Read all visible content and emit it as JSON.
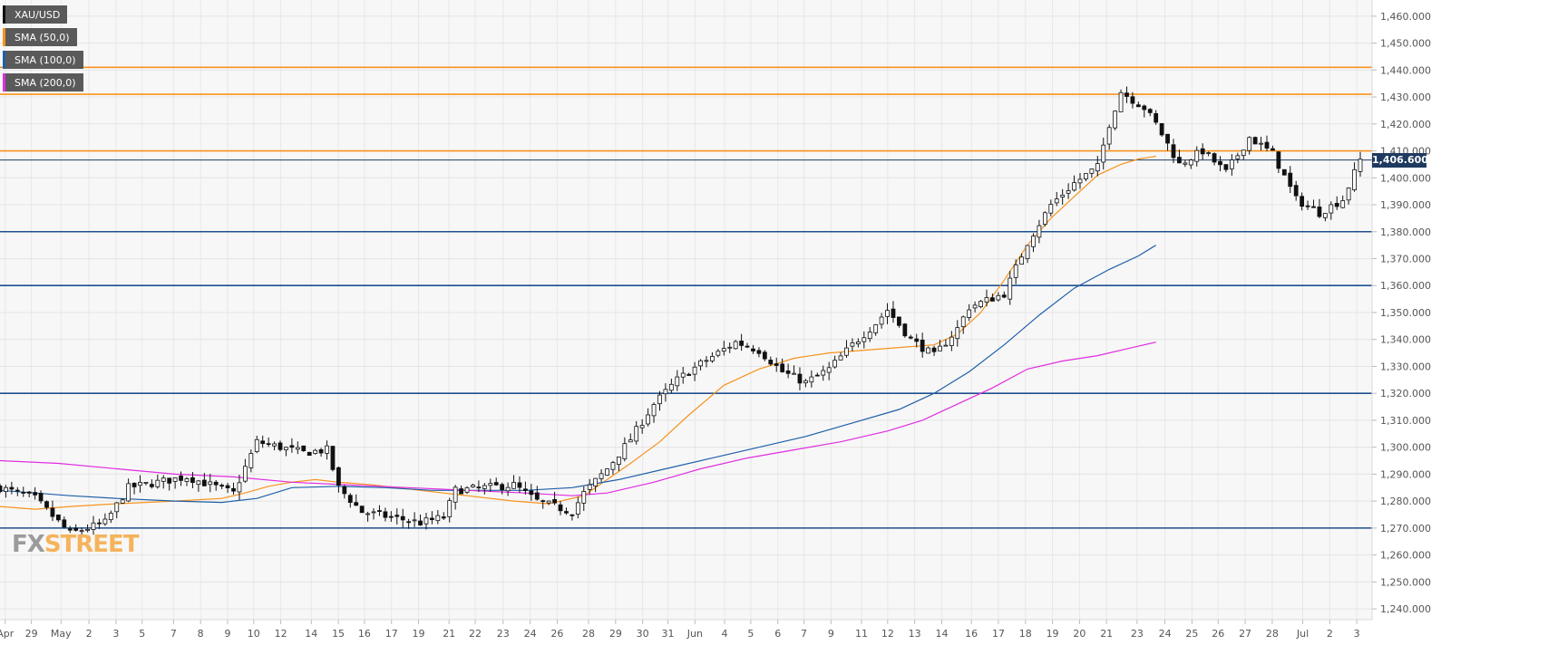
{
  "chart_data": {
    "type": "candlestick",
    "symbol": "XAU/USD",
    "ylim": [
      1236,
      1466
    ],
    "y_ticks": [
      1240,
      1250,
      1260,
      1270,
      1280,
      1290,
      1300,
      1310,
      1320,
      1330,
      1340,
      1350,
      1360,
      1370,
      1380,
      1390,
      1400,
      1410,
      1420,
      1430,
      1440,
      1450,
      1460
    ],
    "y_tick_labels": [
      "1,240.000",
      "1,250.000",
      "1,260.000",
      "1,270.000",
      "1,280.000",
      "1,290.000",
      "1,300.000",
      "1,310.000",
      "1,320.000",
      "1,330.000",
      "1,340.000",
      "1,350.000",
      "1,360.000",
      "1,370.000",
      "1,380.000",
      "1,390.000",
      "1,400.000",
      "1,410.000",
      "1,420.000",
      "1,430.000",
      "1,440.000",
      "1,450.000",
      "1,460.000"
    ],
    "x_labels": [
      "Apr",
      "29",
      "May",
      "2",
      "3",
      "5",
      "7",
      "8",
      "9",
      "10",
      "12",
      "14",
      "15",
      "16",
      "17",
      "19",
      "21",
      "22",
      "23",
      "24",
      "26",
      "28",
      "29",
      "30",
      "31",
      "Jun",
      "4",
      "5",
      "6",
      "7",
      "9",
      "11",
      "12",
      "13",
      "14",
      "16",
      "17",
      "18",
      "19",
      "20",
      "21",
      "23",
      "24",
      "25",
      "26",
      "27",
      "28",
      "Jul",
      "2",
      "3"
    ],
    "current_price": 1406.6,
    "current_price_label": "1,406.600",
    "grid": true,
    "legend_position": "top-left",
    "levels": [
      {
        "value": 1441,
        "color": "#f7931e"
      },
      {
        "value": 1431,
        "color": "#f7931e"
      },
      {
        "value": 1410,
        "color": "#f7931e"
      },
      {
        "value": 1380,
        "color": "#1f4f8f"
      },
      {
        "value": 1360,
        "color": "#1f4f8f"
      },
      {
        "value": 1320,
        "color": "#1f4f8f"
      },
      {
        "value": 1270,
        "color": "#1f4f8f"
      }
    ],
    "series": [
      {
        "name": "SMA (50,0)",
        "color": "#f7931e",
        "points": [
          [
            0,
            1278
          ],
          [
            6,
            1277
          ],
          [
            12,
            1278
          ],
          [
            20,
            1279
          ],
          [
            30,
            1280
          ],
          [
            38,
            1281
          ],
          [
            42,
            1283
          ],
          [
            46,
            1285.5
          ],
          [
            50,
            1287
          ],
          [
            54,
            1288
          ],
          [
            58,
            1287
          ],
          [
            64,
            1286
          ],
          [
            72,
            1284
          ],
          [
            80,
            1282
          ],
          [
            88,
            1280
          ],
          [
            94,
            1279
          ],
          [
            100,
            1282
          ],
          [
            104,
            1288
          ],
          [
            108,
            1294
          ],
          [
            113,
            1302
          ],
          [
            118,
            1312
          ],
          [
            124,
            1323
          ],
          [
            130,
            1329
          ],
          [
            136,
            1333
          ],
          [
            142,
            1335
          ],
          [
            148,
            1336
          ],
          [
            154,
            1337
          ],
          [
            160,
            1338
          ],
          [
            164,
            1342
          ],
          [
            168,
            1350
          ],
          [
            172,
            1362
          ],
          [
            176,
            1375
          ],
          [
            180,
            1385
          ],
          [
            184,
            1393
          ],
          [
            188,
            1401
          ],
          [
            192,
            1405
          ],
          [
            195,
            1407
          ],
          [
            198,
            1408
          ]
        ]
      },
      {
        "name": "SMA (100,0)",
        "color": "#1f5fa8",
        "points": [
          [
            0,
            1284
          ],
          [
            6,
            1283
          ],
          [
            12,
            1282
          ],
          [
            20,
            1281
          ],
          [
            30,
            1280
          ],
          [
            38,
            1279.5
          ],
          [
            44,
            1281
          ],
          [
            50,
            1285
          ],
          [
            58,
            1285.5
          ],
          [
            66,
            1285
          ],
          [
            74,
            1284
          ],
          [
            82,
            1284
          ],
          [
            90,
            1284
          ],
          [
            98,
            1285
          ],
          [
            106,
            1288
          ],
          [
            114,
            1292
          ],
          [
            122,
            1296
          ],
          [
            130,
            1300
          ],
          [
            138,
            1304
          ],
          [
            146,
            1309
          ],
          [
            154,
            1314
          ],
          [
            160,
            1320
          ],
          [
            166,
            1328
          ],
          [
            172,
            1338
          ],
          [
            178,
            1349
          ],
          [
            184,
            1359
          ],
          [
            190,
            1366
          ],
          [
            195,
            1371
          ],
          [
            198,
            1375
          ]
        ]
      },
      {
        "name": "SMA (200,0)",
        "color": "#e02de0",
        "points": [
          [
            0,
            1295
          ],
          [
            10,
            1294
          ],
          [
            20,
            1292
          ],
          [
            30,
            1290
          ],
          [
            40,
            1289
          ],
          [
            50,
            1287
          ],
          [
            60,
            1286
          ],
          [
            70,
            1285
          ],
          [
            80,
            1284
          ],
          [
            90,
            1283
          ],
          [
            98,
            1282
          ],
          [
            104,
            1283
          ],
          [
            112,
            1287
          ],
          [
            120,
            1292
          ],
          [
            128,
            1296
          ],
          [
            136,
            1299
          ],
          [
            144,
            1302
          ],
          [
            152,
            1306
          ],
          [
            158,
            1310
          ],
          [
            164,
            1316
          ],
          [
            170,
            1322
          ],
          [
            176,
            1329
          ],
          [
            182,
            1332
          ],
          [
            188,
            1334
          ],
          [
            194,
            1337
          ],
          [
            198,
            1339
          ]
        ]
      }
    ],
    "anchors": [
      [
        0,
        1285
      ],
      [
        6,
        1281
      ],
      [
        12,
        1268
      ],
      [
        18,
        1272
      ],
      [
        22,
        1285
      ],
      [
        32,
        1289
      ],
      [
        40,
        1283
      ],
      [
        44,
        1302
      ],
      [
        52,
        1298
      ],
      [
        56,
        1299
      ],
      [
        58,
        1285
      ],
      [
        62,
        1276
      ],
      [
        72,
        1272
      ],
      [
        76,
        1274
      ],
      [
        78,
        1284
      ],
      [
        88,
        1286
      ],
      [
        92,
        1280
      ],
      [
        98,
        1276
      ],
      [
        100,
        1283
      ],
      [
        104,
        1292
      ],
      [
        108,
        1303
      ],
      [
        112,
        1316
      ],
      [
        116,
        1325
      ],
      [
        120,
        1331
      ],
      [
        126,
        1339
      ],
      [
        130,
        1336
      ],
      [
        134,
        1328
      ],
      [
        138,
        1324
      ],
      [
        142,
        1329
      ],
      [
        146,
        1338
      ],
      [
        150,
        1346
      ],
      [
        152,
        1351
      ],
      [
        156,
        1340
      ],
      [
        160,
        1334
      ],
      [
        164,
        1344
      ],
      [
        166,
        1352
      ],
      [
        172,
        1357
      ],
      [
        176,
        1376
      ],
      [
        180,
        1390
      ],
      [
        184,
        1398
      ],
      [
        188,
        1404
      ],
      [
        190,
        1420
      ],
      [
        192,
        1432
      ],
      [
        196,
        1426
      ],
      [
        198,
        1420
      ],
      [
        202,
        1405
      ],
      [
        206,
        1410
      ],
      [
        210,
        1402
      ],
      [
        214,
        1415
      ],
      [
        218,
        1409
      ],
      [
        222,
        1392
      ],
      [
        226,
        1387
      ],
      [
        230,
        1392
      ],
      [
        233,
        1406.6
      ]
    ]
  },
  "watermark": {
    "fx": "FX",
    "street": "STREET"
  }
}
